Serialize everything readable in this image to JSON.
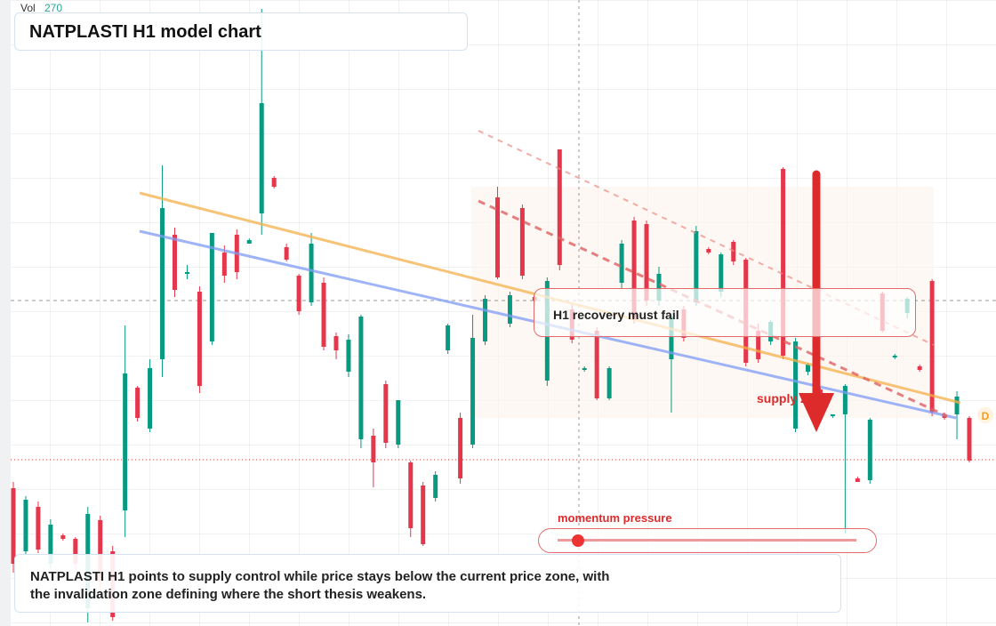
{
  "chart_data": {
    "type": "candlestick",
    "title": "NATPLASTI H1 model chart",
    "volume_label": "Vol",
    "volume_value": 270,
    "annotations": {
      "callout": "H1 recovery must fail",
      "zone": "supply zone",
      "momentum": "momentum pressure",
      "badge": "D",
      "description": "NATPLASTI H1 points to supply control while price stays below the current price zone, with the invalidation zone defining where the short thesis weakens."
    },
    "up_color": "#089981",
    "down_color": "#e5374b",
    "ylim": [
      0,
      704
    ],
    "candles": [
      [
        155,
        162,
        60,
        70
      ],
      [
        84,
        146,
        80,
        142
      ],
      [
        134,
        140,
        82,
        86
      ],
      [
        70,
        120,
        64,
        114
      ],
      [
        102,
        104,
        96,
        98
      ],
      [
        98,
        100,
        62,
        70
      ],
      [
        20,
        134,
        4,
        126
      ],
      [
        119,
        124,
        40,
        50
      ],
      [
        84,
        90,
        6,
        10
      ],
      [
        130,
        338,
        100,
        284
      ],
      [
        268,
        270,
        230,
        234
      ],
      [
        222,
        300,
        218,
        290
      ],
      [
        300,
        518,
        280,
        470
      ],
      [
        440,
        448,
        370,
        378
      ],
      [
        396,
        406,
        390,
        398
      ],
      [
        376,
        382,
        262,
        270
      ],
      [
        320,
        442,
        316,
        442
      ],
      [
        420,
        428,
        386,
        394
      ],
      [
        440,
        446,
        390,
        398
      ],
      [
        430,
        436,
        430,
        434
      ],
      [
        464,
        694,
        440,
        588
      ],
      [
        504,
        506,
        492,
        494
      ],
      [
        426,
        430,
        410,
        412
      ],
      [
        394,
        396,
        350,
        354
      ],
      [
        364,
        442,
        360,
        430
      ],
      [
        386,
        392,
        310,
        314
      ],
      [
        326,
        330,
        300,
        310
      ],
      [
        286,
        328,
        280,
        322
      ],
      [
        210,
        350,
        200,
        348
      ],
      [
        214,
        222,
        156,
        184
      ],
      [
        272,
        276,
        200,
        206
      ],
      [
        204,
        254,
        200,
        254
      ],
      [
        184,
        186,
        100,
        110
      ],
      [
        158,
        162,
        90,
        92
      ],
      [
        144,
        174,
        140,
        170
      ],
      [
        310,
        340,
        306,
        338
      ],
      [
        234,
        240,
        160,
        166
      ],
      [
        204,
        350,
        200,
        324
      ],
      [
        320,
        372,
        316,
        368
      ],
      [
        482,
        494,
        390,
        392
      ],
      [
        340,
        376,
        336,
        372
      ],
      [
        470,
        474,
        390,
        394
      ],
      [
        370,
        372,
        364,
        366
      ],
      [
        276,
        392,
        270,
        388
      ],
      [
        536,
        536,
        400,
        406
      ],
      [
        356,
        362,
        318,
        322
      ],
      [
        288,
        292,
        286,
        290
      ],
      [
        332,
        336,
        254,
        256
      ],
      [
        256,
        292,
        254,
        290
      ],
      [
        386,
        434,
        380,
        430
      ],
      [
        456,
        460,
        340,
        344
      ],
      [
        452,
        456,
        360,
        366
      ],
      [
        366,
        404,
        360,
        396
      ],
      [
        300,
        350,
        240,
        348
      ],
      [
        356,
        360,
        320,
        324
      ],
      [
        364,
        450,
        360,
        444
      ],
      [
        424,
        426,
        418,
        420
      ],
      [
        376,
        420,
        370,
        418
      ],
      [
        432,
        434,
        406,
        410
      ],
      [
        412,
        414,
        292,
        296
      ],
      [
        332,
        340,
        296,
        300
      ],
      [
        320,
        344,
        316,
        342
      ],
      [
        514,
        516,
        300,
        304
      ],
      [
        222,
        324,
        218,
        320
      ],
      [
        286,
        296,
        282,
        294
      ],
      [
        266,
        268,
        256,
        258
      ],
      [
        236,
        238,
        234,
        238
      ],
      [
        238,
        272,
        104,
        270
      ],
      [
        166,
        168,
        162,
        162
      ],
      [
        164,
        234,
        160,
        232
      ],
      [
        374,
        376,
        330,
        332
      ],
      [
        302,
        306,
        300,
        304
      ],
      [
        352,
        370,
        346,
        368
      ],
      [
        292,
        294,
        286,
        288
      ],
      [
        388,
        390,
        236,
        240
      ],
      [
        238,
        240,
        232,
        234
      ],
      [
        238,
        264,
        210,
        258
      ],
      [
        234,
        236,
        184,
        186
      ]
    ]
  }
}
